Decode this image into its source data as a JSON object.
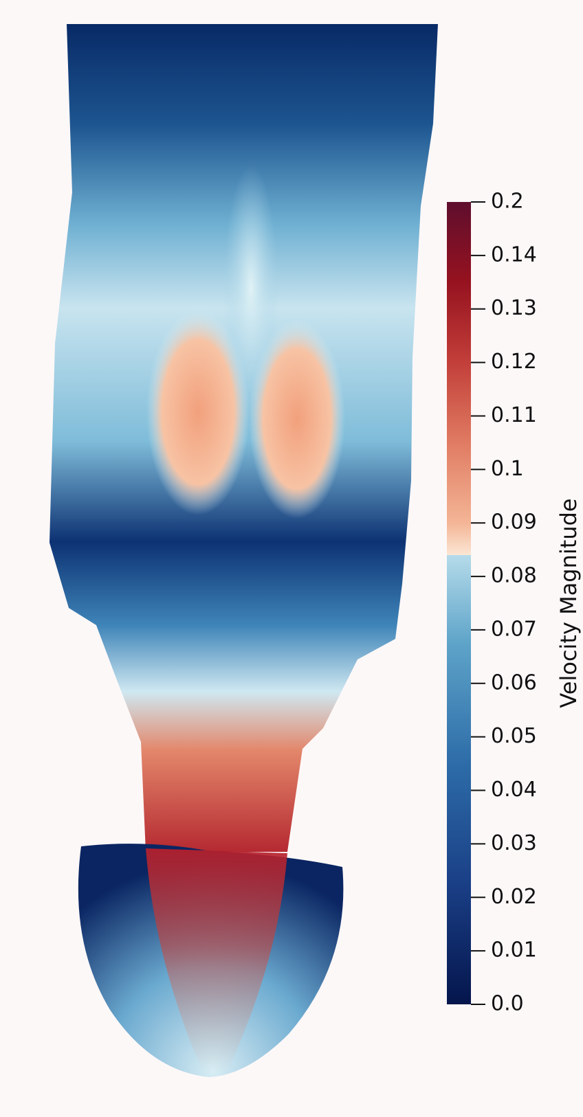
{
  "colorbar": {
    "title": "Velocity Magnitude",
    "ticks": [
      {
        "value": 0,
        "label": "0.0"
      },
      0.01,
      0.02,
      0.03,
      0.04,
      0.05,
      0.06,
      0.07,
      0.08,
      0.09,
      {
        "value": 0.1,
        "label": "0.1"
      },
      0.11,
      0.12,
      0.13,
      0.14,
      0.2
    ]
  }
}
